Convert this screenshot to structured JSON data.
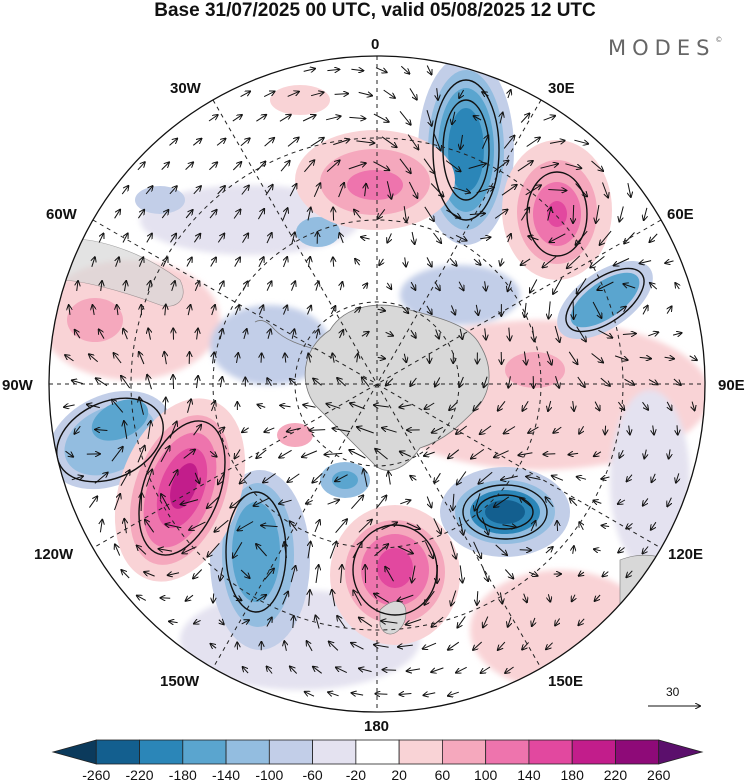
{
  "title": "Base 31/07/2025 00 UTC, valid 05/08/2025 12 UTC",
  "brand": "MODES",
  "brand_mark": "©",
  "labels": {
    "lon_0": "0",
    "lon_30e": "30E",
    "lon_60e": "60E",
    "lon_90e": "90E",
    "lon_120e": "120E",
    "lon_150e": "150E",
    "lon_180": "180",
    "lon_150w": "150W",
    "lon_120w": "120W",
    "lon_90w": "90W",
    "lon_60w": "60W",
    "lon_30w": "30W"
  },
  "vector_scale": "30",
  "colorbar": {
    "ticks": [
      "-260",
      "-220",
      "-180",
      "-140",
      "-100",
      "-60",
      "-20",
      "20",
      "60",
      "100",
      "140",
      "180",
      "220",
      "260"
    ],
    "colors": [
      "#0b3a5c",
      "#135f8f",
      "#2b86b8",
      "#5aa5cf",
      "#93bde0",
      "#c2cee8",
      "#e4e2f0",
      "#ffffff",
      "#f9d3d6",
      "#f5a8bd",
      "#ee74ad",
      "#e2489f",
      "#c21d8b",
      "#8e0a78",
      "#5b0f6c"
    ]
  },
  "colors": {
    "grid": "#222222",
    "land": "#d8d8d8",
    "coast": "#777777"
  },
  "anomaly_blobs": [
    {
      "region": "south-atlantic-east",
      "value": -220
    },
    {
      "region": "south-indian-west",
      "value": 180
    },
    {
      "region": "south-indian-east",
      "value": -140
    },
    {
      "region": "south-pacific-central",
      "value": 220
    },
    {
      "region": "south-pacific-east",
      "value": -180
    },
    {
      "region": "ross-sea-north",
      "value": 180
    },
    {
      "region": "south-australia",
      "value": -220
    },
    {
      "region": "south-atlantic-west",
      "value": 140
    }
  ]
}
